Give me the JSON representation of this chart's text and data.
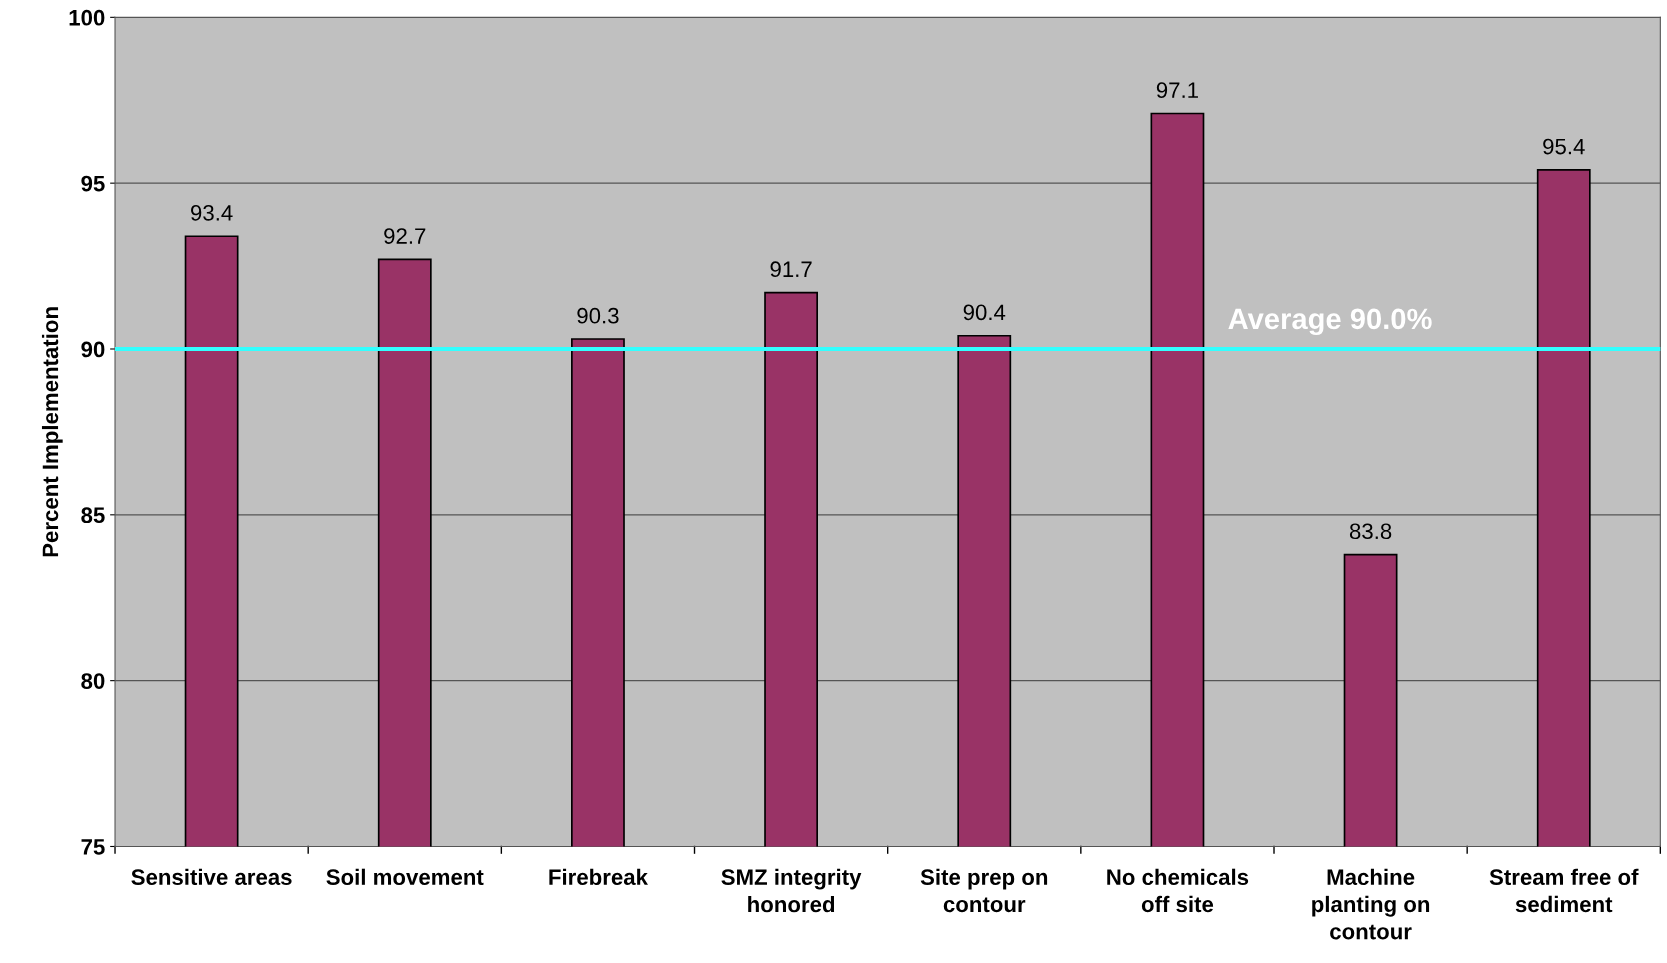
{
  "chart_data": {
    "type": "bar",
    "ylabel": "Percent Implementation",
    "categories": [
      "Sensitive areas",
      "Soil movement",
      "Firebreak",
      "SMZ integrity honored",
      "Site prep on contour",
      "No chemicals off site",
      "Machine planting on contour",
      "Stream free of sediment"
    ],
    "values": [
      93.4,
      92.7,
      90.3,
      91.7,
      90.4,
      97.1,
      83.8,
      95.4
    ],
    "color": "#993366",
    "ylim": [
      75,
      100
    ],
    "yticks": [
      75,
      80,
      85,
      90,
      95,
      100
    ],
    "grid": "y",
    "data_labels": true,
    "ref_lines": [
      {
        "axis": "y",
        "value": 90.0,
        "label": "Average 90.0%",
        "color": "#33ffff"
      }
    ]
  }
}
